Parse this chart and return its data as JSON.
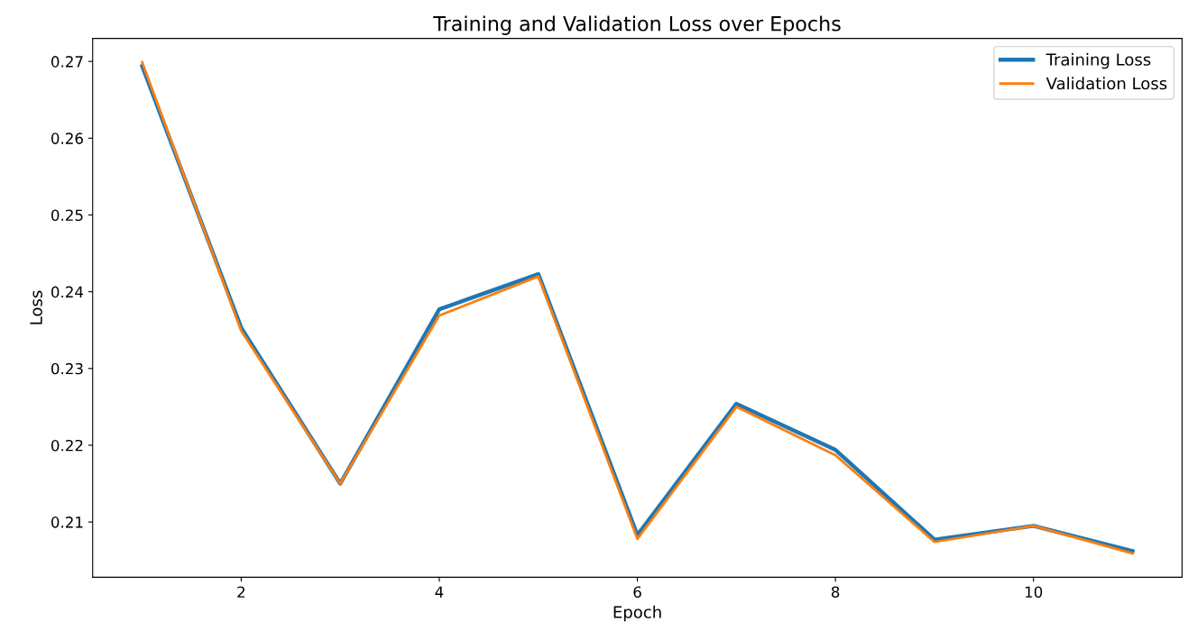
{
  "chart_data": {
    "type": "line",
    "title": "Training and Validation Loss over Epochs",
    "xlabel": "Epoch",
    "ylabel": "Loss",
    "x": [
      1,
      2,
      3,
      4,
      5,
      6,
      7,
      8,
      9,
      10,
      11
    ],
    "series": [
      {
        "name": "Training Loss",
        "color": "#1f77b4",
        "values": [
          0.2694,
          0.2353,
          0.215,
          0.2377,
          0.2423,
          0.2083,
          0.2254,
          0.2194,
          0.2077,
          0.2095,
          0.2062
        ]
      },
      {
        "name": "Validation Loss",
        "color": "#ff7f0e",
        "values": [
          0.2699,
          0.2349,
          0.215,
          0.2369,
          0.242,
          0.2078,
          0.225,
          0.2187,
          0.2074,
          0.2095,
          0.2059
        ]
      }
    ],
    "xlim": [
      0.5,
      11.5
    ],
    "xticks": [
      2,
      4,
      6,
      8,
      10
    ],
    "ylim": [
      0.2028,
      0.273
    ],
    "yticks": [
      0.21,
      0.22,
      0.23,
      0.24,
      0.25,
      0.26,
      0.27
    ],
    "legend": "upper right",
    "grid": false
  }
}
